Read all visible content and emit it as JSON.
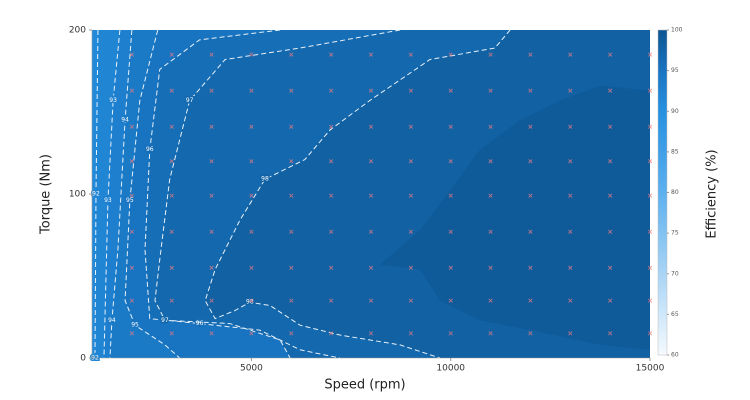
{
  "chart_data": {
    "type": "contour",
    "x_label": "Speed (rpm)",
    "y_label": "Torque (Nm)",
    "colorbar_label": "Efficiency (%)",
    "xlim": [
      1000,
      15000
    ],
    "ylim": [
      0,
      200
    ],
    "xticks": [
      5000,
      10000,
      15000
    ],
    "yticks": [
      0,
      100,
      200
    ],
    "clim": [
      60,
      100
    ],
    "cticks": [
      60,
      65,
      70,
      75,
      80,
      85,
      90,
      95,
      100
    ],
    "colormap": [
      [
        60,
        "#f5fafe"
      ],
      [
        70,
        "#a9d4f5"
      ],
      [
        80,
        "#5cb0ee"
      ],
      [
        90,
        "#2590e0"
      ],
      [
        95,
        "#1874c0"
      ],
      [
        100,
        "#0d5590"
      ]
    ],
    "base_level": 91,
    "marker_color": "#e07a85",
    "points": {
      "x": [
        2000,
        3000,
        4000,
        5000,
        6000,
        7000,
        8000,
        9000,
        10000,
        11000,
        12000,
        13000,
        14000,
        15000
      ],
      "y": [
        15,
        35,
        55,
        77,
        99,
        120,
        141,
        163,
        185
      ]
    },
    "contours": [
      {
        "level": 92,
        "line": true,
        "points": [
          [
            1150,
            200
          ],
          [
            1100,
            100
          ],
          [
            1075,
            0
          ]
        ]
      },
      {
        "level": 93,
        "line": true,
        "points": [
          [
            1700,
            200
          ],
          [
            1530,
            157
          ],
          [
            1400,
            96
          ],
          [
            1300,
            0
          ]
        ]
      },
      {
        "level": 94,
        "line": true,
        "points": [
          [
            2000,
            200
          ],
          [
            1830,
            145
          ],
          [
            1650,
            66
          ],
          [
            1500,
            23
          ],
          [
            1450,
            0
          ]
        ]
      },
      {
        "level": 95,
        "line": true,
        "points": [
          [
            2650,
            200
          ],
          [
            2200,
            157
          ],
          [
            1950,
            96
          ],
          [
            1830,
            35
          ],
          [
            2080,
            20
          ],
          [
            2830,
            8
          ],
          [
            3200,
            0
          ]
        ]
      },
      {
        "level": 96,
        "line": true,
        "points": [
          [
            5720,
            200
          ],
          [
            3700,
            194
          ],
          [
            2700,
            176
          ],
          [
            2450,
            127
          ],
          [
            2330,
            66
          ],
          [
            2450,
            24
          ],
          [
            3700,
            21
          ],
          [
            5210,
            17
          ],
          [
            6220,
            5
          ],
          [
            7220,
            0
          ]
        ]
      },
      {
        "level": 97,
        "line": true,
        "points": [
          [
            8730,
            200
          ],
          [
            6220,
            189
          ],
          [
            4340,
            182
          ],
          [
            3450,
            157
          ],
          [
            2950,
            109
          ],
          [
            2700,
            60
          ],
          [
            2580,
            35
          ],
          [
            2830,
            23
          ],
          [
            4460,
            21
          ],
          [
            5720,
            11
          ],
          [
            5970,
            0
          ]
        ]
      },
      {
        "level": 98,
        "line": true,
        "points": [
          [
            11490,
            200
          ],
          [
            11110,
            189
          ],
          [
            9480,
            182
          ],
          [
            7970,
            157
          ],
          [
            6970,
            139
          ],
          [
            6340,
            121
          ],
          [
            5340,
            109
          ],
          [
            4710,
            84
          ],
          [
            4090,
            54
          ],
          [
            3840,
            35
          ],
          [
            4090,
            24
          ],
          [
            4590,
            29
          ],
          [
            4960,
            34
          ],
          [
            5470,
            32
          ],
          [
            6220,
            20
          ],
          [
            7220,
            14
          ],
          [
            8730,
            8
          ],
          [
            9730,
            0
          ]
        ]
      },
      {
        "level": 99,
        "line": false,
        "points": [
          [
            15000,
            163
          ],
          [
            13750,
            166
          ],
          [
            12740,
            157
          ],
          [
            11740,
            145
          ],
          [
            10730,
            127
          ],
          [
            9980,
            102
          ],
          [
            9230,
            78
          ],
          [
            8230,
            57
          ],
          [
            9230,
            54
          ],
          [
            9730,
            35
          ],
          [
            10730,
            23
          ],
          [
            11990,
            17
          ],
          [
            13750,
            8
          ],
          [
            15000,
            5
          ]
        ]
      }
    ]
  }
}
